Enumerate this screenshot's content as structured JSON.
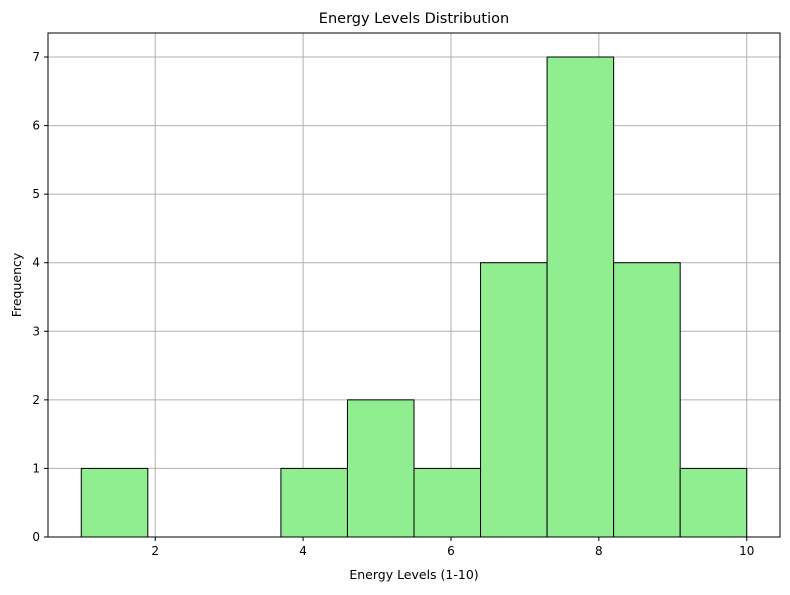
{
  "chart_data": {
    "type": "bar",
    "title": "Energy Levels Distribution",
    "xlabel": "Energy Levels (1-10)",
    "ylabel": "Frequency",
    "xlim": [
      0.55,
      10.45
    ],
    "ylim": [
      0,
      7.35
    ],
    "x_ticks": [
      2,
      4,
      6,
      8,
      10
    ],
    "y_ticks": [
      0,
      1,
      2,
      3,
      4,
      5,
      6,
      7
    ],
    "grid": true,
    "bins": [
      {
        "x0": 1.0,
        "x1": 1.9,
        "value": 1
      },
      {
        "x0": 1.9,
        "x1": 2.8,
        "value": 0
      },
      {
        "x0": 2.8,
        "x1": 3.7,
        "value": 0
      },
      {
        "x0": 3.7,
        "x1": 4.6,
        "value": 1
      },
      {
        "x0": 4.6,
        "x1": 5.5,
        "value": 2
      },
      {
        "x0": 5.5,
        "x1": 6.4,
        "value": 1
      },
      {
        "x0": 6.4,
        "x1": 7.3,
        "value": 4
      },
      {
        "x0": 7.3,
        "x1": 8.2,
        "value": 7
      },
      {
        "x0": 8.2,
        "x1": 9.1,
        "value": 4
      },
      {
        "x0": 9.1,
        "x1": 10.0,
        "value": 1
      }
    ],
    "bar_color": "#90ee90",
    "edge_color": "#000000",
    "grid_color": "#b0b0b0"
  }
}
